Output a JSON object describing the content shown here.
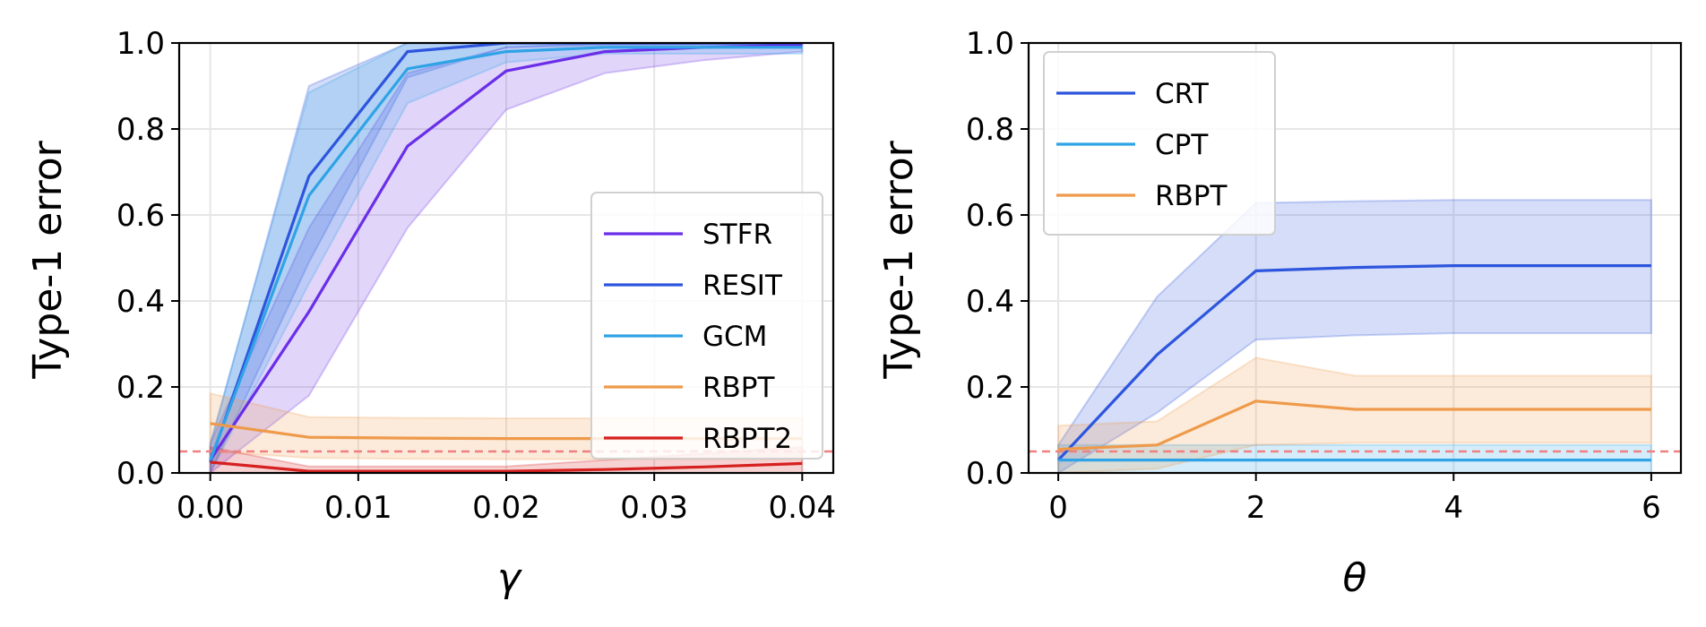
{
  "chart_data": [
    {
      "type": "line",
      "title": "",
      "xlabel": "γ",
      "ylabel": "Type-1 error",
      "xlim": [
        -0.0021,
        0.0421
      ],
      "ylim": [
        0.0,
        1.0
      ],
      "xticks": [
        0.0,
        0.01,
        0.02,
        0.03,
        0.04
      ],
      "xtick_labels": [
        "0.00",
        "0.01",
        "0.02",
        "0.03",
        "0.04"
      ],
      "yticks": [
        0.0,
        0.2,
        0.4,
        0.6,
        0.8,
        1.0
      ],
      "ytick_labels": [
        "0.0",
        "0.2",
        "0.4",
        "0.6",
        "0.8",
        "1.0"
      ],
      "grid": true,
      "legend_position": "lower-right",
      "reference_line": {
        "y": 0.05,
        "color": "#f08080",
        "style": "dashed"
      },
      "x": [
        0.0,
        0.00667,
        0.01333,
        0.02,
        0.02667,
        0.03333,
        0.04
      ],
      "series": [
        {
          "name": "STFR",
          "color": "#6a2ee8",
          "values": [
            0.03,
            0.375,
            0.76,
            0.935,
            0.98,
            0.99,
            0.995
          ],
          "lower": [
            0.0,
            0.18,
            0.57,
            0.845,
            0.93,
            0.96,
            0.98
          ],
          "upper": [
            0.07,
            0.57,
            0.93,
            0.99,
            1.0,
            1.0,
            1.0
          ]
        },
        {
          "name": "RESIT",
          "color": "#2d55dd",
          "values": [
            0.025,
            0.69,
            0.98,
            1.0,
            1.0,
            1.0,
            1.0
          ],
          "lower": [
            0.0,
            0.49,
            0.92,
            0.99,
            0.995,
            0.995,
            0.995
          ],
          "upper": [
            0.065,
            0.9,
            1.0,
            1.0,
            1.0,
            1.0,
            1.0
          ]
        },
        {
          "name": "GCM",
          "color": "#2fa3e6",
          "values": [
            0.03,
            0.645,
            0.94,
            0.98,
            0.99,
            0.99,
            0.99
          ],
          "lower": [
            0.0,
            0.44,
            0.86,
            0.955,
            0.975,
            0.975,
            0.975
          ],
          "upper": [
            0.07,
            0.885,
            1.0,
            1.0,
            1.0,
            1.0,
            1.0
          ]
        },
        {
          "name": "RBPT",
          "color": "#ee9a4a",
          "values": [
            0.115,
            0.083,
            0.081,
            0.08,
            0.08,
            0.08,
            0.08
          ],
          "lower": [
            0.05,
            0.035,
            0.033,
            0.032,
            0.032,
            0.032,
            0.032
          ],
          "upper": [
            0.185,
            0.13,
            0.128,
            0.127,
            0.127,
            0.127,
            0.127
          ]
        },
        {
          "name": "RBPT2",
          "color": "#d62020",
          "values": [
            0.025,
            0.004,
            0.004,
            0.004,
            0.008,
            0.014,
            0.022
          ],
          "lower": [
            0.0,
            0.0,
            0.0,
            0.0,
            0.0,
            0.0,
            0.0
          ],
          "upper": [
            0.06,
            0.015,
            0.015,
            0.015,
            0.03,
            0.045,
            0.06
          ]
        }
      ]
    },
    {
      "type": "line",
      "title": "",
      "xlabel": "θ",
      "ylabel": "Type-1 error",
      "xlim": [
        -0.3,
        6.3
      ],
      "ylim": [
        0.0,
        1.0
      ],
      "xticks": [
        0,
        2,
        4,
        6
      ],
      "xtick_labels": [
        "0",
        "2",
        "4",
        "6"
      ],
      "yticks": [
        0.0,
        0.2,
        0.4,
        0.6,
        0.8,
        1.0
      ],
      "ytick_labels": [
        "0.0",
        "0.2",
        "0.4",
        "0.6",
        "0.8",
        "1.0"
      ],
      "grid": true,
      "legend_position": "upper-left",
      "reference_line": {
        "y": 0.05,
        "color": "#f08080",
        "style": "dashed"
      },
      "x": [
        0,
        1,
        2,
        3,
        4,
        5,
        6
      ],
      "series": [
        {
          "name": "CRT",
          "color": "#2d55dd",
          "values": [
            0.03,
            0.275,
            0.47,
            0.478,
            0.482,
            0.482,
            0.482
          ],
          "lower": [
            0.0,
            0.14,
            0.31,
            0.32,
            0.325,
            0.325,
            0.325
          ],
          "upper": [
            0.065,
            0.41,
            0.628,
            0.632,
            0.635,
            0.635,
            0.635
          ]
        },
        {
          "name": "CPT",
          "color": "#2fa3e6",
          "values": [
            0.03,
            0.03,
            0.03,
            0.03,
            0.03,
            0.03,
            0.03
          ],
          "lower": [
            0.0,
            0.0,
            0.0,
            0.0,
            0.0,
            0.0,
            0.0
          ],
          "upper": [
            0.065,
            0.065,
            0.065,
            0.065,
            0.065,
            0.065,
            0.065
          ]
        },
        {
          "name": "RBPT",
          "color": "#ee9a4a",
          "values": [
            0.055,
            0.065,
            0.167,
            0.148,
            0.148,
            0.148,
            0.148
          ],
          "lower": [
            0.0,
            0.01,
            0.065,
            0.07,
            0.07,
            0.07,
            0.07
          ],
          "upper": [
            0.11,
            0.12,
            0.268,
            0.226,
            0.226,
            0.226,
            0.226
          ]
        }
      ]
    }
  ]
}
